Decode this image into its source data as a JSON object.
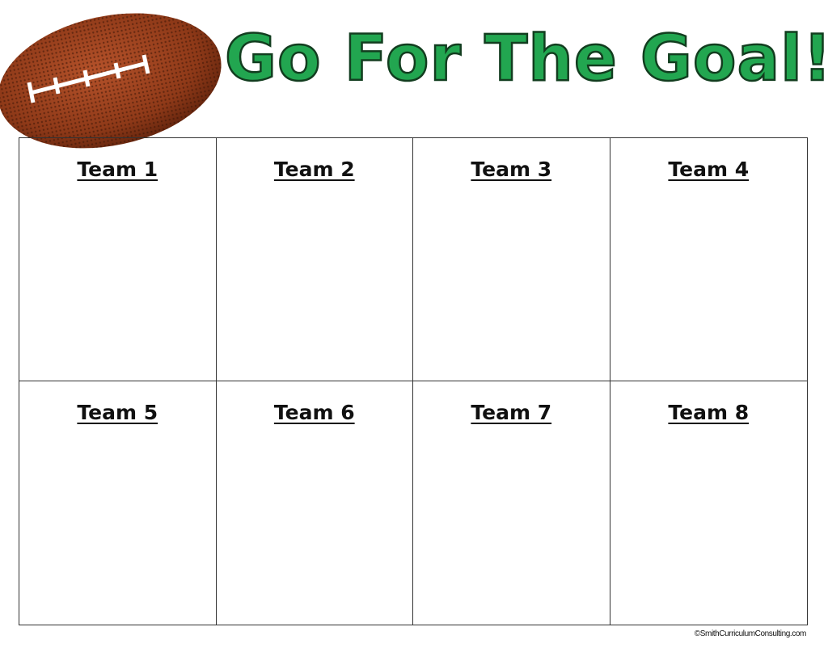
{
  "title": "Go For The Goal!",
  "teams": [
    "Team 1",
    "Team 2",
    "Team 3",
    "Team 4",
    "Team 5",
    "Team 6",
    "Team 7",
    "Team 8"
  ],
  "footer": "©SmithCurriculumConsulting.com",
  "colors": {
    "title": "#22a650",
    "football": "#8a3514",
    "grid_lines": "#333333"
  },
  "images": {
    "football": "football-image"
  }
}
